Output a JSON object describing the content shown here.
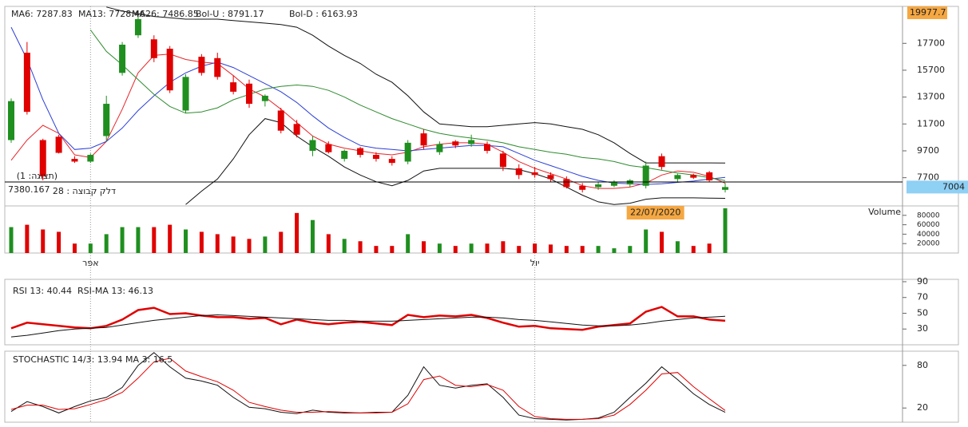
{
  "chart_data": [
    {
      "type": "candlestick",
      "open": [
        10500,
        17000,
        10500,
        10750,
        9100,
        8900,
        10800,
        15500,
        18300,
        18000,
        17300,
        12700,
        16700,
        16600,
        14800,
        14700,
        13400,
        12700,
        11700,
        9700,
        10200,
        9100,
        9900,
        9400,
        9100,
        8900,
        11000,
        9600,
        10400,
        10200,
        10200,
        9500,
        8400,
        8100,
        7900,
        7600,
        7100,
        7000,
        7100,
        7200,
        7100,
        9300,
        7600,
        7900,
        8100,
        6800
      ],
      "high": [
        13600,
        17800,
        10600,
        10900,
        9300,
        9500,
        13800,
        17800,
        19900,
        18300,
        17500,
        15400,
        16900,
        17000,
        15300,
        15000,
        13900,
        12900,
        12000,
        10800,
        10400,
        9800,
        10000,
        9600,
        9300,
        10500,
        11300,
        10400,
        10500,
        10900,
        10400,
        9700,
        8700,
        8500,
        8100,
        7800,
        7300,
        7400,
        7500,
        7600,
        8900,
        9500,
        8000,
        8000,
        8200,
        7300
      ],
      "low": [
        10300,
        12400,
        7500,
        9500,
        8800,
        8800,
        10400,
        15300,
        18100,
        16300,
        14000,
        12500,
        15300,
        15000,
        13900,
        12900,
        13000,
        11000,
        10700,
        9300,
        9500,
        8900,
        9200,
        8900,
        8600,
        8700,
        9800,
        9400,
        9900,
        10000,
        9500,
        8200,
        7600,
        7700,
        7400,
        6900,
        6600,
        6800,
        7000,
        7000,
        6900,
        8300,
        7400,
        7600,
        7400,
        6600
      ],
      "close": [
        13400,
        12600,
        7800,
        9550,
        8900,
        9400,
        13200,
        17600,
        19500,
        16600,
        14200,
        15200,
        15500,
        15200,
        14100,
        13200,
        13800,
        11200,
        10900,
        10500,
        9600,
        9700,
        9400,
        9100,
        8800,
        10300,
        10100,
        10200,
        10100,
        10500,
        9700,
        8500,
        7900,
        7900,
        7600,
        7000,
        6800,
        7200,
        7400,
        7500,
        8600,
        8500,
        7900,
        7700,
        7500,
        7004
      ],
      "up_color": "#1f8f1f",
      "down_color": "#e00000",
      "series": [
        {
          "name": "MA6: 7287.83",
          "color": "#e8252a",
          "values": [
            9000,
            10500,
            11600,
            11000,
            9400,
            9200,
            10400,
            12800,
            15500,
            16800,
            16900,
            16500,
            16300,
            16200,
            15300,
            14300,
            13700,
            12800,
            11800,
            10800,
            10200,
            9900,
            9700,
            9500,
            9400,
            9600,
            10000,
            10200,
            10300,
            10300,
            10200,
            9600,
            8900,
            8400,
            8000,
            7600,
            7100,
            6900,
            6900,
            7000,
            7300,
            7900,
            8200,
            8100,
            7800,
            7287.83
          ]
        },
        {
          "name": "MA13: 7728.46",
          "color": "#2b3fd6",
          "values": [
            18900,
            16500,
            13500,
            11000,
            9800,
            9900,
            10400,
            11400,
            12700,
            13800,
            14800,
            15500,
            16000,
            16300,
            15900,
            15300,
            14700,
            14100,
            13300,
            12300,
            11400,
            10700,
            10100,
            9900,
            9800,
            9700,
            9800,
            9900,
            10000,
            10100,
            10100,
            10000,
            9500,
            9000,
            8600,
            8200,
            7800,
            7500,
            7300,
            7250,
            7200,
            7250,
            7350,
            7450,
            7600,
            7728.46
          ]
        },
        {
          "name": "MA26: 7486.85",
          "color": "#2e8b2e",
          "values": [
            null,
            null,
            null,
            null,
            null,
            18700,
            17100,
            16100,
            15000,
            13900,
            13000,
            12500,
            12600,
            12900,
            13500,
            13900,
            14300,
            14500,
            14600,
            14500,
            14200,
            13700,
            13100,
            12600,
            12100,
            11700,
            11300,
            11000,
            10800,
            10650,
            10500,
            10300,
            10000,
            9800,
            9600,
            9450,
            9200,
            9100,
            8900,
            8600,
            8450,
            8250,
            8050,
            7900,
            7700,
            7486.85
          ]
        },
        {
          "name": "Bol-U : 8791.17",
          "color": "#111111",
          "values": [
            null,
            null,
            null,
            null,
            null,
            null,
            20400,
            20100,
            19900,
            19700,
            19600,
            19500,
            19500,
            19500,
            19400,
            19300,
            19200,
            19100,
            18900,
            18300,
            17500,
            16800,
            16200,
            15400,
            14800,
            13800,
            12600,
            11700,
            11600,
            11500,
            11500,
            11600,
            11700,
            11800,
            11700,
            11500,
            11300,
            10900,
            10300,
            9500,
            8800,
            8800,
            8800,
            8800,
            8800,
            8791.17
          ]
        },
        {
          "name": "Bol-D : 6163.93",
          "color": "#111111",
          "values": [
            null,
            null,
            null,
            null,
            null,
            null,
            null,
            null,
            null,
            null,
            null,
            5700,
            6700,
            7600,
            9100,
            10900,
            12100,
            11800,
            10800,
            10000,
            9300,
            8500,
            7900,
            7400,
            7100,
            7500,
            8200,
            8400,
            8400,
            8400,
            8400,
            8400,
            8300,
            8000,
            7600,
            7000,
            6400,
            5900,
            5700,
            5800,
            6100,
            6200,
            6200,
            6200,
            6180,
            6163.93
          ]
        }
      ],
      "ylim": [
        5600,
        20450
      ],
      "yticks": [
        7700,
        9700,
        11700,
        13700,
        15700,
        17700
      ],
      "grid": false,
      "max_label": 19977.7,
      "last_price": 7004,
      "crosshair_price": 7380.167,
      "instrument": "דלק קבוצה : 28",
      "display_label": "(תצוגה: 1)",
      "crosshair_date": "22/07/2020"
    },
    {
      "type": "bar",
      "title": "Volume",
      "categories": [
        null,
        null,
        null,
        null,
        null,
        "אפר",
        null,
        null,
        null,
        null,
        null,
        null,
        null,
        null,
        null,
        null,
        null,
        null,
        null,
        null,
        null,
        null,
        null,
        null,
        null,
        null,
        null,
        null,
        null,
        null,
        null,
        null,
        null,
        "יול",
        null,
        null,
        null,
        null,
        null,
        null,
        null,
        null,
        null,
        null,
        null,
        null
      ],
      "values": [
        55000,
        60000,
        50000,
        45000,
        20000,
        20000,
        40000,
        55000,
        55000,
        55000,
        60000,
        50000,
        45000,
        40000,
        35000,
        30000,
        35000,
        45000,
        85000,
        70000,
        40000,
        30000,
        25000,
        15000,
        15000,
        40000,
        25000,
        20000,
        15000,
        20000,
        20000,
        25000,
        15000,
        20000,
        18000,
        15000,
        15000,
        15000,
        10000,
        15000,
        50000,
        45000,
        25000,
        15000,
        20000,
        95000
      ],
      "ylim": [
        0,
        100000
      ],
      "yticks": [
        20000,
        40000,
        60000,
        80000
      ],
      "grid": false
    },
    {
      "type": "line",
      "series": [
        {
          "name": "RSI 13: 40.44",
          "color": "#e00000",
          "width": 2.5,
          "values": [
            31,
            38,
            36,
            34,
            32,
            31,
            34,
            42,
            54,
            57,
            49,
            50,
            47,
            45,
            45,
            43,
            44,
            36,
            42,
            38,
            36,
            38,
            39,
            37,
            35,
            48,
            45,
            47,
            46,
            48,
            44,
            38,
            33,
            34,
            31,
            30,
            29,
            33,
            35,
            37,
            52,
            58,
            46,
            46,
            42,
            40.44
          ]
        },
        {
          "name": "RSI-MA 13: 46.13",
          "color": "#111111",
          "width": 1,
          "values": [
            20,
            22,
            25,
            28,
            30,
            31,
            32,
            35,
            38,
            41,
            43,
            45,
            47,
            48,
            47,
            46,
            45,
            44,
            43,
            42,
            41,
            41,
            40,
            40,
            40,
            41,
            42,
            43,
            44,
            45,
            45,
            44,
            42,
            41,
            39,
            37,
            35,
            34,
            34,
            35,
            37,
            40,
            42,
            44,
            45,
            46.13
          ]
        }
      ],
      "ylim": [
        10,
        93
      ],
      "yticks": [
        30,
        50,
        70,
        90
      ],
      "grid": false
    },
    {
      "type": "line",
      "series": [
        {
          "name": "STOCHASTIC 14/3: 13.94",
          "color": "#111111",
          "width": 1,
          "values": [
            15,
            29,
            22,
            13,
            22,
            30,
            35,
            49,
            80,
            98,
            78,
            62,
            58,
            52,
            35,
            21,
            19,
            14,
            12,
            17,
            14,
            13,
            13,
            14,
            14,
            38,
            78,
            52,
            48,
            52,
            54,
            35,
            10,
            5,
            4,
            3,
            4,
            6,
            14,
            35,
            55,
            78,
            60,
            40,
            25,
            13.94
          ]
        },
        {
          "name": "MA 3: 16.5",
          "color": "#e00000",
          "width": 1,
          "values": [
            18,
            24,
            24,
            18,
            19,
            25,
            32,
            42,
            62,
            85,
            90,
            72,
            64,
            57,
            45,
            28,
            22,
            17,
            14,
            14,
            15,
            14,
            13,
            13,
            14,
            26,
            60,
            65,
            52,
            50,
            53,
            45,
            22,
            8,
            5,
            4,
            4,
            5,
            10,
            25,
            45,
            68,
            70,
            50,
            33,
            16.5
          ]
        }
      ],
      "ylim": [
        0,
        100
      ],
      "yticks": [
        20,
        80
      ],
      "grid": false
    }
  ]
}
